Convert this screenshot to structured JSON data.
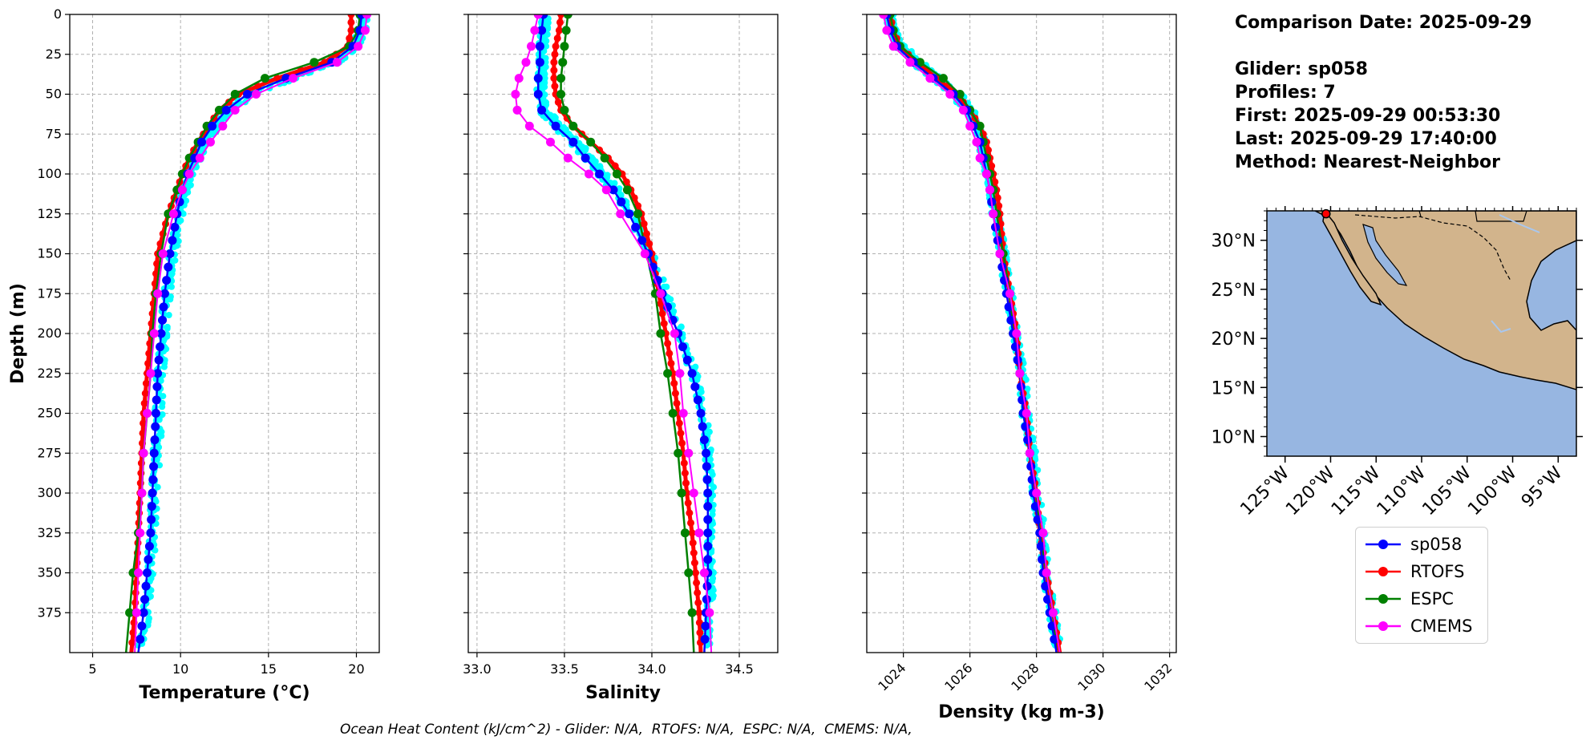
{
  "info": {
    "comparison_date": "Comparison Date: 2025-09-29",
    "glider": "Glider: sp058",
    "profiles": "Profiles: 7",
    "first": "First: 2025-09-29 00:53:30",
    "last": "Last: 2025-09-29 17:40:00",
    "method": "Method: Nearest-Neighbor"
  },
  "footer": {
    "ohc_text": "Ocean Heat Content (kJ/cm^2) - Glider: N/A,  RTOFS: N/A,  ESPC: N/A,  CMEMS: N/A,"
  },
  "colors": {
    "sp058": "#0000ff",
    "RTOFS": "#ff0000",
    "ESPC": "#008000",
    "CMEMS": "#ff00ff",
    "glider_points": "#00ffff",
    "ocean": "#97b6e1",
    "land": "#d2b48c"
  },
  "legend": [
    "sp058",
    "RTOFS",
    "ESPC",
    "CMEMS"
  ],
  "chart_data": [
    {
      "type": "line",
      "xlabel": "Temperature (°C)",
      "ylabel": "Depth (m)",
      "xlim": [
        3.7,
        21.3
      ],
      "ylim": [
        400,
        0
      ],
      "xticks": [
        5,
        10,
        15,
        20
      ],
      "yticks": [
        0,
        25,
        50,
        75,
        100,
        125,
        150,
        175,
        200,
        225,
        250,
        275,
        300,
        325,
        350,
        375
      ],
      "grid": true,
      "depth": [
        0,
        10,
        20,
        30,
        40,
        50,
        60,
        70,
        80,
        90,
        100,
        110,
        125,
        150,
        175,
        200,
        225,
        250,
        275,
        300,
        325,
        350,
        375,
        400
      ],
      "series": [
        {
          "name": "sp058",
          "values": [
            20.3,
            20.2,
            19.8,
            18.6,
            16.0,
            13.8,
            12.6,
            11.8,
            11.2,
            10.8,
            10.4,
            10.1,
            9.8,
            9.4,
            9.1,
            8.9,
            8.7,
            8.6,
            8.5,
            8.4,
            8.3,
            8.1,
            7.9,
            7.6
          ]
        },
        {
          "name": "RTOFS",
          "values": [
            19.7,
            19.7,
            19.5,
            18.2,
            15.5,
            13.3,
            12.2,
            11.6,
            11.0,
            10.5,
            10.1,
            9.8,
            9.3,
            8.7,
            8.5,
            8.3,
            8.1,
            7.9,
            7.8,
            7.7,
            7.6,
            7.5,
            7.4,
            7.2
          ]
        },
        {
          "name": "ESPC",
          "values": [
            20.2,
            20.1,
            19.6,
            17.6,
            14.8,
            13.1,
            12.2,
            11.5,
            11.0,
            10.5,
            10.1,
            9.8,
            9.3,
            8.9,
            8.6,
            8.4,
            8.3,
            8.1,
            7.9,
            7.8,
            7.6,
            7.3,
            7.1,
            6.9
          ]
        },
        {
          "name": "CMEMS",
          "values": [
            20.6,
            20.5,
            20.1,
            18.9,
            16.4,
            14.3,
            13.1,
            12.4,
            11.7,
            11.1,
            10.5,
            10.1,
            9.6,
            9.0,
            8.7,
            8.5,
            8.3,
            8.1,
            7.9,
            7.8,
            7.7,
            7.6,
            7.5,
            7.4
          ]
        }
      ]
    },
    {
      "type": "line",
      "xlabel": "Salinity",
      "ylabel": "",
      "xlim": [
        32.95,
        34.72
      ],
      "ylim": [
        400,
        0
      ],
      "xticks": [
        33.0,
        33.5,
        34.0,
        34.5
      ],
      "grid": true,
      "depth": [
        0,
        10,
        20,
        30,
        40,
        50,
        60,
        70,
        80,
        90,
        100,
        110,
        125,
        150,
        175,
        200,
        225,
        250,
        275,
        300,
        325,
        350,
        375,
        400
      ],
      "series": [
        {
          "name": "sp058",
          "values": [
            33.38,
            33.37,
            33.36,
            33.36,
            33.35,
            33.35,
            33.37,
            33.45,
            33.55,
            33.62,
            33.7,
            33.78,
            33.87,
            33.98,
            34.06,
            34.15,
            34.23,
            34.28,
            34.31,
            34.32,
            34.32,
            34.32,
            34.31,
            34.3
          ]
        },
        {
          "name": "RTOFS",
          "values": [
            33.48,
            33.47,
            33.45,
            33.44,
            33.44,
            33.45,
            33.48,
            33.55,
            33.65,
            33.75,
            33.83,
            33.88,
            33.94,
            34.0,
            34.04,
            34.08,
            34.12,
            34.15,
            34.18,
            34.2,
            34.23,
            34.25,
            34.27,
            34.28
          ]
        },
        {
          "name": "ESPC",
          "values": [
            33.52,
            33.51,
            33.5,
            33.49,
            33.48,
            33.48,
            33.5,
            33.55,
            33.65,
            33.73,
            33.8,
            33.86,
            33.92,
            33.97,
            34.02,
            34.05,
            34.09,
            34.12,
            34.15,
            34.17,
            34.19,
            34.21,
            34.23,
            34.24
          ]
        },
        {
          "name": "CMEMS",
          "values": [
            33.35,
            33.33,
            33.31,
            33.28,
            33.24,
            33.22,
            33.23,
            33.3,
            33.42,
            33.52,
            33.64,
            33.74,
            33.82,
            33.96,
            34.05,
            34.13,
            34.16,
            34.18,
            34.21,
            34.24,
            34.27,
            34.3,
            34.33,
            34.34
          ]
        }
      ]
    },
    {
      "type": "line",
      "xlabel": "Density (kg m-3)",
      "ylabel": "",
      "xlim": [
        1022.9,
        1032.2
      ],
      "ylim": [
        400,
        0
      ],
      "xticks": [
        1024,
        1026,
        1028,
        1030,
        1032
      ],
      "grid": true,
      "depth": [
        0,
        10,
        20,
        30,
        40,
        50,
        60,
        70,
        80,
        90,
        100,
        110,
        125,
        150,
        175,
        200,
        225,
        250,
        275,
        300,
        325,
        350,
        375,
        400
      ],
      "series": [
        {
          "name": "sp058",
          "values": [
            1023.5,
            1023.6,
            1023.8,
            1024.3,
            1024.9,
            1025.5,
            1025.9,
            1026.1,
            1026.3,
            1026.4,
            1026.5,
            1026.6,
            1026.7,
            1026.9,
            1027.1,
            1027.3,
            1027.5,
            1027.6,
            1027.8,
            1027.9,
            1028.1,
            1028.2,
            1028.4,
            1028.6
          ]
        },
        {
          "name": "RTOFS",
          "values": [
            1023.6,
            1023.7,
            1023.9,
            1024.4,
            1025.0,
            1025.6,
            1026.0,
            1026.3,
            1026.5,
            1026.6,
            1026.7,
            1026.8,
            1026.9,
            1027.0,
            1027.2,
            1027.4,
            1027.5,
            1027.7,
            1027.8,
            1028.0,
            1028.1,
            1028.3,
            1028.5,
            1028.7
          ]
        },
        {
          "name": "ESPC",
          "values": [
            1023.6,
            1023.7,
            1023.9,
            1024.5,
            1025.2,
            1025.7,
            1026.0,
            1026.3,
            1026.4,
            1026.5,
            1026.6,
            1026.7,
            1026.8,
            1027.0,
            1027.2,
            1027.3,
            1027.5,
            1027.6,
            1027.8,
            1028.0,
            1028.1,
            1028.3,
            1028.5,
            1028.6
          ]
        },
        {
          "name": "CMEMS",
          "values": [
            1023.4,
            1023.5,
            1023.7,
            1024.2,
            1024.8,
            1025.4,
            1025.8,
            1026.0,
            1026.2,
            1026.3,
            1026.5,
            1026.6,
            1026.7,
            1026.9,
            1027.2,
            1027.4,
            1027.5,
            1027.7,
            1027.8,
            1028.0,
            1028.2,
            1028.3,
            1028.5,
            1028.7
          ]
        }
      ]
    },
    {
      "type": "map",
      "lon_range": [
        -127,
        -93
      ],
      "lat_range": [
        8,
        33
      ],
      "xticks": [
        "125°W",
        "120°W",
        "115°W",
        "110°W",
        "105°W",
        "100°W",
        "95°W"
      ],
      "yticks": [
        "30°N",
        "25°N",
        "20°N",
        "15°N",
        "10°N"
      ],
      "glider_location": {
        "lon": -120.5,
        "lat": 32.7
      }
    }
  ]
}
